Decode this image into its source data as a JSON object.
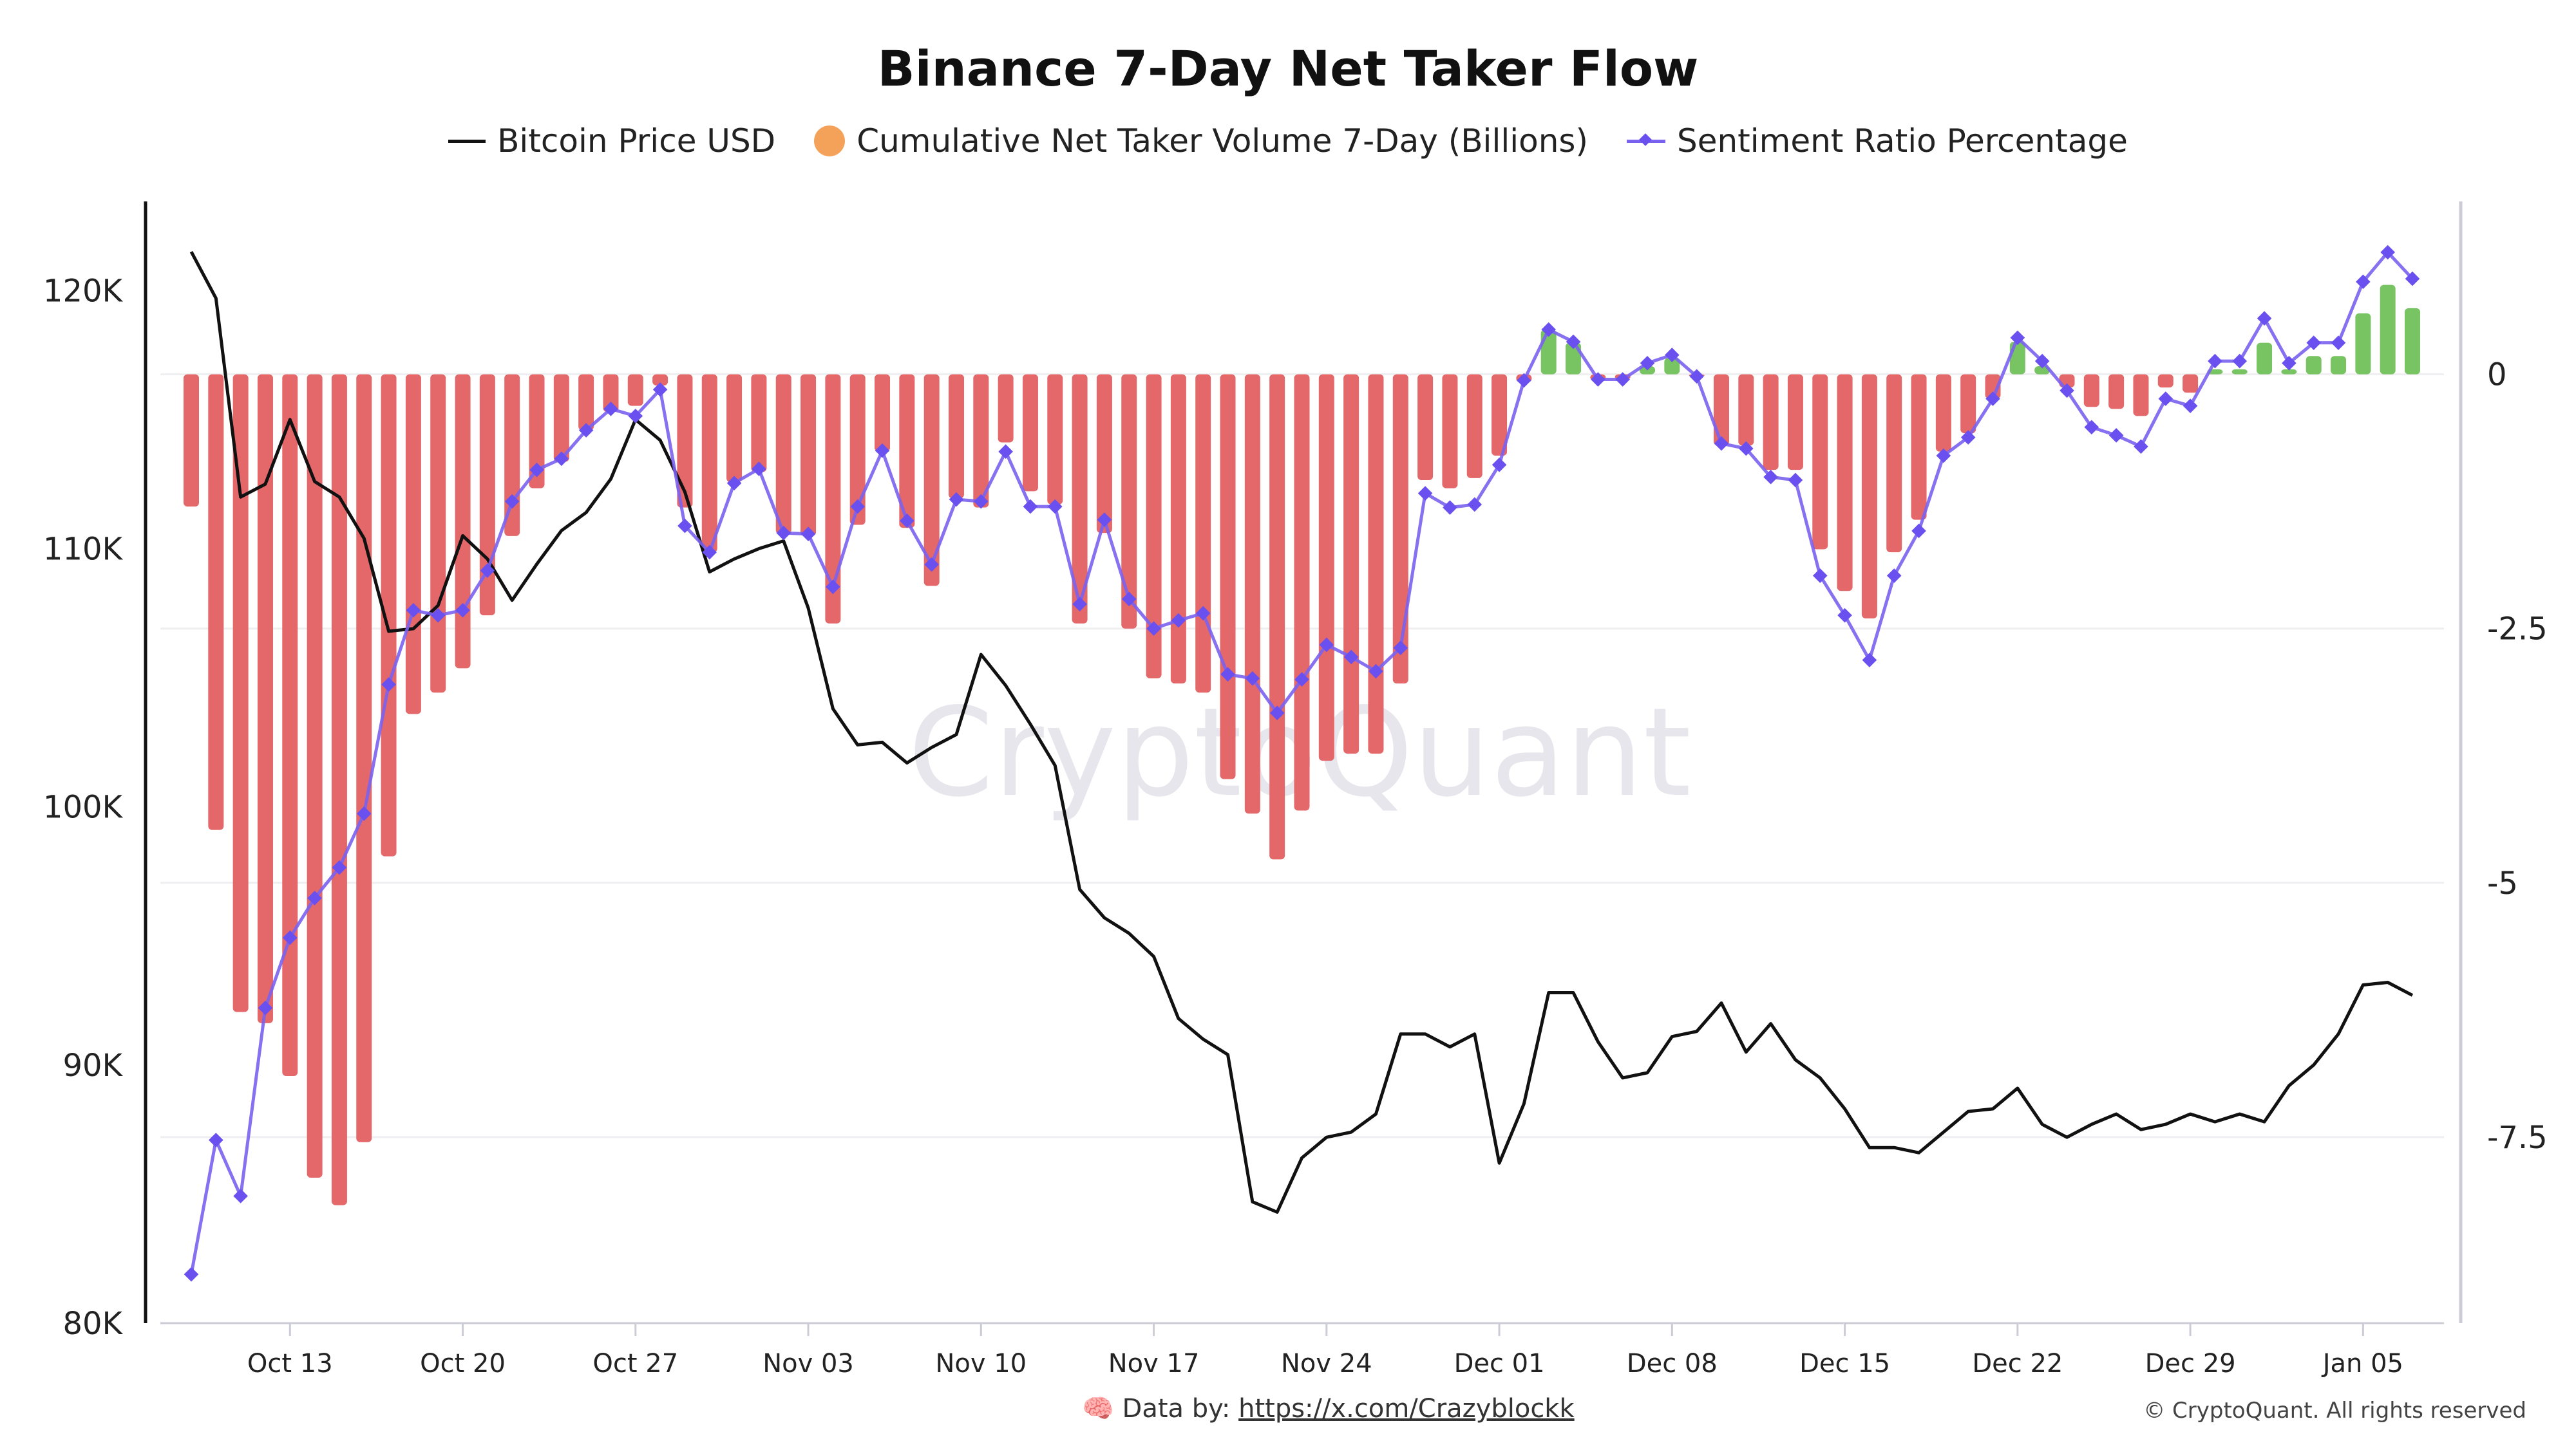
{
  "chart_data": {
    "type": "bar+line",
    "title": "Binance 7-Day Net Taker Flow",
    "legend": [
      "Bitcoin Price USD",
      "Cumulative Net Taker Volume 7-Day (Billions)",
      "Sentiment Ratio Percentage"
    ],
    "legend_position": "top",
    "watermark": "CryptoQuant",
    "colors": {
      "price": "#111111",
      "bar_negative": "#e4676a",
      "bar_positive": "#78c463",
      "sentiment": "#7a62f0",
      "legend_bar": "#f4a259"
    },
    "grid": true,
    "y_left": {
      "ticks": [
        80000,
        90000,
        100000,
        110000,
        120000
      ],
      "tick_labels": [
        "80K",
        "90K",
        "100K",
        "110K",
        "120K"
      ],
      "range": [
        80000,
        123450
      ]
    },
    "y_right": {
      "ticks": [
        0,
        -2.5,
        -5,
        -7.5
      ],
      "tick_labels": [
        "0",
        "-2.5",
        "-5",
        "-7.5"
      ],
      "range": [
        -9.33,
        1.7
      ]
    },
    "x_tick_labels": [
      "Oct 13",
      "Oct 20",
      "Oct 27",
      "Nov 03",
      "Nov 10",
      "Nov 17",
      "Nov 24",
      "Dec 01",
      "Dec 08",
      "Dec 15",
      "Dec 22",
      "Dec 29",
      "Jan 05"
    ],
    "x_tick_dates": [
      "Oct 13",
      "Oct 20",
      "Oct 27",
      "Nov 03",
      "Nov 10",
      "Nov 17",
      "Nov 24",
      "Dec 01",
      "Dec 08",
      "Dec 15",
      "Dec 22",
      "Dec 29",
      "Jan 05"
    ],
    "x": [
      "Oct 09",
      "Oct 10",
      "Oct 11",
      "Oct 12",
      "Oct 13",
      "Oct 14",
      "Oct 15",
      "Oct 16",
      "Oct 17",
      "Oct 18",
      "Oct 19",
      "Oct 20",
      "Oct 21",
      "Oct 22",
      "Oct 23",
      "Oct 24",
      "Oct 25",
      "Oct 26",
      "Oct 27",
      "Oct 28",
      "Oct 29",
      "Oct 30",
      "Oct 31",
      "Nov 01",
      "Nov 02",
      "Nov 03",
      "Nov 04",
      "Nov 05",
      "Nov 06",
      "Nov 07",
      "Nov 08",
      "Nov 09",
      "Nov 10",
      "Nov 11",
      "Nov 12",
      "Nov 13",
      "Nov 14",
      "Nov 15",
      "Nov 16",
      "Nov 17",
      "Nov 18",
      "Nov 19",
      "Nov 20",
      "Nov 21",
      "Nov 22",
      "Nov 23",
      "Nov 24",
      "Nov 25",
      "Nov 26",
      "Nov 27",
      "Nov 28",
      "Nov 29",
      "Nov 30",
      "Dec 01",
      "Dec 02",
      "Dec 03",
      "Dec 04",
      "Dec 05",
      "Dec 06",
      "Dec 07",
      "Dec 08",
      "Dec 09",
      "Dec 10",
      "Dec 11",
      "Dec 12",
      "Dec 13",
      "Dec 14",
      "Dec 15",
      "Dec 16",
      "Dec 17",
      "Dec 18",
      "Dec 19",
      "Dec 20",
      "Dec 21",
      "Dec 22",
      "Dec 23",
      "Dec 24",
      "Dec 25",
      "Dec 26",
      "Dec 27",
      "Dec 28",
      "Dec 29",
      "Dec 30",
      "Dec 31",
      "Jan 01",
      "Jan 02",
      "Jan 03",
      "Jan 04",
      "Jan 05",
      "Jan 06",
      "Jan 07"
    ],
    "series": [
      {
        "name": "Bitcoin Price USD",
        "axis": "left",
        "type": "line",
        "values": [
          121500,
          119700,
          112000,
          112500,
          115000,
          112600,
          112000,
          110400,
          106800,
          106900,
          107800,
          110500,
          109600,
          108000,
          109400,
          110700,
          111400,
          112700,
          115000,
          114200,
          112200,
          109100,
          109600,
          110000,
          110300,
          107700,
          103800,
          102400,
          102500,
          101700,
          102300,
          102800,
          105900,
          104700,
          103200,
          101600,
          96800,
          95700,
          95100,
          94200,
          91800,
          91000,
          90400,
          84700,
          84300,
          86400,
          87200,
          87400,
          88100,
          91200,
          91200,
          90700,
          91200,
          86200,
          88500,
          92800,
          92800,
          90900,
          89500,
          89700,
          91100,
          91300,
          92400,
          90500,
          91600,
          90200,
          89500,
          88300,
          86800,
          86800,
          86600,
          87400,
          88200,
          88300,
          89100,
          87700,
          87200,
          87700,
          88100,
          87500,
          87700,
          88100,
          87800,
          88100,
          87800,
          89200,
          90000,
          91200,
          93100,
          93200,
          92700
        ]
      },
      {
        "name": "Cumulative Net Taker Volume 7-Day (Billions)",
        "axis": "right",
        "type": "bar",
        "values": [
          -1.3,
          -4.48,
          -6.27,
          -6.38,
          -6.9,
          -7.9,
          -8.17,
          -7.55,
          -4.74,
          -3.34,
          -3.13,
          -2.89,
          -2.37,
          -1.59,
          -1.12,
          -0.86,
          -0.55,
          -0.37,
          -0.31,
          -0.11,
          -1.31,
          -1.75,
          -1.06,
          -0.96,
          -1.57,
          -1.59,
          -2.45,
          -1.48,
          -0.76,
          -1.51,
          -2.08,
          -1.22,
          -1.31,
          -0.67,
          -1.15,
          -1.28,
          -2.45,
          -1.56,
          -2.5,
          -2.99,
          -3.04,
          -3.13,
          -3.98,
          -4.32,
          -4.77,
          -4.29,
          -3.8,
          -3.73,
          -3.73,
          -3.04,
          -1.04,
          -1.12,
          -1.02,
          -0.8,
          -0.08,
          0.44,
          0.31,
          -0.06,
          -0.05,
          0.08,
          0.16,
          -0.02,
          -0.7,
          -0.7,
          -0.94,
          -0.94,
          -1.72,
          -2.13,
          -2.4,
          -1.75,
          -1.43,
          -0.76,
          -0.58,
          -0.24,
          0.32,
          0.08,
          -0.13,
          -0.32,
          -0.34,
          -0.41,
          -0.13,
          -0.18,
          0.05,
          0.05,
          0.31,
          0.05,
          0.18,
          0.18,
          0.6,
          0.88,
          0.65
        ]
      },
      {
        "name": "Sentiment Ratio Percentage",
        "axis": "right",
        "type": "line",
        "values": [
          -8.85,
          -7.53,
          -8.08,
          -6.23,
          -5.54,
          -5.15,
          -4.85,
          -4.32,
          -3.05,
          -2.32,
          -2.37,
          -2.32,
          -1.93,
          -1.25,
          -0.94,
          -0.83,
          -0.55,
          -0.34,
          -0.41,
          -0.15,
          -1.49,
          -1.75,
          -1.07,
          -0.93,
          -1.56,
          -1.57,
          -2.09,
          -1.3,
          -0.75,
          -1.44,
          -1.87,
          -1.23,
          -1.25,
          -0.76,
          -1.3,
          -1.3,
          -2.26,
          -1.43,
          -2.21,
          -2.5,
          -2.42,
          -2.35,
          -2.95,
          -2.99,
          -3.33,
          -3.0,
          -2.66,
          -2.78,
          -2.92,
          -2.69,
          -1.17,
          -1.31,
          -1.28,
          -0.89,
          -0.06,
          0.44,
          0.32,
          -0.05,
          -0.05,
          0.11,
          0.19,
          -0.02,
          -0.68,
          -0.73,
          -1.01,
          -1.04,
          -1.98,
          -2.37,
          -2.81,
          -1.98,
          -1.54,
          -0.8,
          -0.62,
          -0.24,
          0.36,
          0.13,
          -0.16,
          -0.52,
          -0.6,
          -0.71,
          -0.24,
          -0.31,
          0.13,
          0.13,
          0.55,
          0.11,
          0.31,
          0.31,
          0.91,
          1.2,
          0.94
        ]
      }
    ]
  },
  "footer": {
    "emoji": "🧠",
    "prefix": "Data by:",
    "link": "https://x.com/Crazyblockk",
    "copyright": "© CryptoQuant. All rights reserved"
  }
}
